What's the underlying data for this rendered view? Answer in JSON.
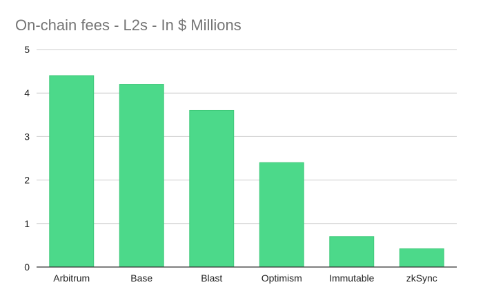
{
  "chart_data": {
    "type": "bar",
    "title": "On-chain fees - L2s - In $ Millions",
    "xlabel": "",
    "ylabel": "",
    "categories": [
      "Arbitrum",
      "Base",
      "Blast",
      "Optimism",
      "Immutable",
      "zkSync"
    ],
    "values": [
      4.4,
      4.2,
      3.6,
      2.4,
      0.7,
      0.42
    ],
    "ylim": [
      0,
      5
    ],
    "yticks": [
      "0",
      "1",
      "2",
      "3",
      "4",
      "5"
    ],
    "grid": true,
    "legend": "none",
    "bar_color": "#4cd98a"
  }
}
